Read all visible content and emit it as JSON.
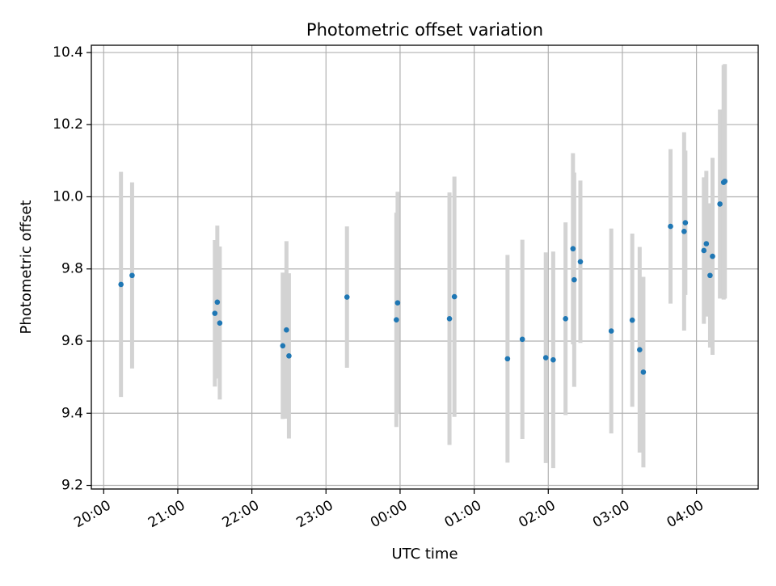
{
  "chart_data": {
    "type": "scatter",
    "title": "Photometric offset variation",
    "xlabel": "UTC time",
    "ylabel": "Photometric offset",
    "grid": true,
    "legend": "none",
    "x_axis_kind": "time",
    "xlim": [
      "19:50",
      "04:50"
    ],
    "ylim": [
      9.19,
      10.42
    ],
    "x_ticks": [
      "20:00",
      "21:00",
      "22:00",
      "23:00",
      "00:00",
      "01:00",
      "02:00",
      "03:00",
      "04:00"
    ],
    "y_ticks": [
      9.2,
      9.4,
      9.6,
      9.8,
      10.0,
      10.2,
      10.4
    ],
    "y_tick_labels": [
      "9.2",
      "9.4",
      "9.6",
      "9.8",
      "10.0",
      "10.2",
      "10.4"
    ],
    "colors": {
      "marker": "#1f77b4",
      "errorbar": "#d3d3d3",
      "grid": "#b0b0b0",
      "axes": "#000000"
    },
    "series": [
      {
        "points": [
          {
            "t": "20:14",
            "y": 9.757,
            "yerr": 0.312
          },
          {
            "t": "20:23",
            "y": 9.782,
            "yerr": 0.258
          },
          {
            "t": "21:30",
            "y": 9.677,
            "yerr": 0.203
          },
          {
            "t": "21:32",
            "y": 9.708,
            "yerr": 0.212
          },
          {
            "t": "21:34",
            "y": 9.65,
            "yerr": 0.212
          },
          {
            "t": "22:25",
            "y": 9.587,
            "yerr": 0.203
          },
          {
            "t": "22:28",
            "y": 9.631,
            "yerr": 0.246
          },
          {
            "t": "22:30",
            "y": 9.559,
            "yerr": 0.229
          },
          {
            "t": "23:17",
            "y": 9.722,
            "yerr": 0.196
          },
          {
            "t": "23:57",
            "y": 9.659,
            "yerr": 0.297
          },
          {
            "t": "23:58",
            "y": 9.706,
            "yerr": 0.308
          },
          {
            "t": "00:40",
            "y": 9.662,
            "yerr": 0.35
          },
          {
            "t": "00:44",
            "y": 9.723,
            "yerr": 0.333
          },
          {
            "t": "01:27",
            "y": 9.551,
            "yerr": 0.288
          },
          {
            "t": "01:39",
            "y": 9.605,
            "yerr": 0.276
          },
          {
            "t": "01:58",
            "y": 9.554,
            "yerr": 0.292
          },
          {
            "t": "02:04",
            "y": 9.548,
            "yerr": 0.3
          },
          {
            "t": "02:14",
            "y": 9.662,
            "yerr": 0.267
          },
          {
            "t": "02:20",
            "y": 9.856,
            "yerr": 0.265
          },
          {
            "t": "02:21",
            "y": 9.77,
            "yerr": 0.297
          },
          {
            "t": "02:26",
            "y": 9.82,
            "yerr": 0.225
          },
          {
            "t": "02:51",
            "y": 9.628,
            "yerr": 0.284
          },
          {
            "t": "03:08",
            "y": 9.658,
            "yerr": 0.24
          },
          {
            "t": "03:14",
            "y": 9.576,
            "yerr": 0.285
          },
          {
            "t": "03:17",
            "y": 9.514,
            "yerr": 0.264
          },
          {
            "t": "03:39",
            "y": 9.918,
            "yerr": 0.214
          },
          {
            "t": "03:50",
            "y": 9.904,
            "yerr": 0.275
          },
          {
            "t": "03:51",
            "y": 9.928,
            "yerr": 0.2
          },
          {
            "t": "04:06",
            "y": 9.851,
            "yerr": 0.203
          },
          {
            "t": "04:08",
            "y": 9.87,
            "yerr": 0.202
          },
          {
            "t": "04:11",
            "y": 9.782,
            "yerr": 0.2
          },
          {
            "t": "04:13",
            "y": 9.835,
            "yerr": 0.273
          },
          {
            "t": "04:19",
            "y": 9.98,
            "yerr": 0.262
          },
          {
            "t": "04:22",
            "y": 10.04,
            "yerr": 0.325
          },
          {
            "t": "04:23",
            "y": 10.043,
            "yerr": 0.325
          }
        ]
      }
    ]
  }
}
